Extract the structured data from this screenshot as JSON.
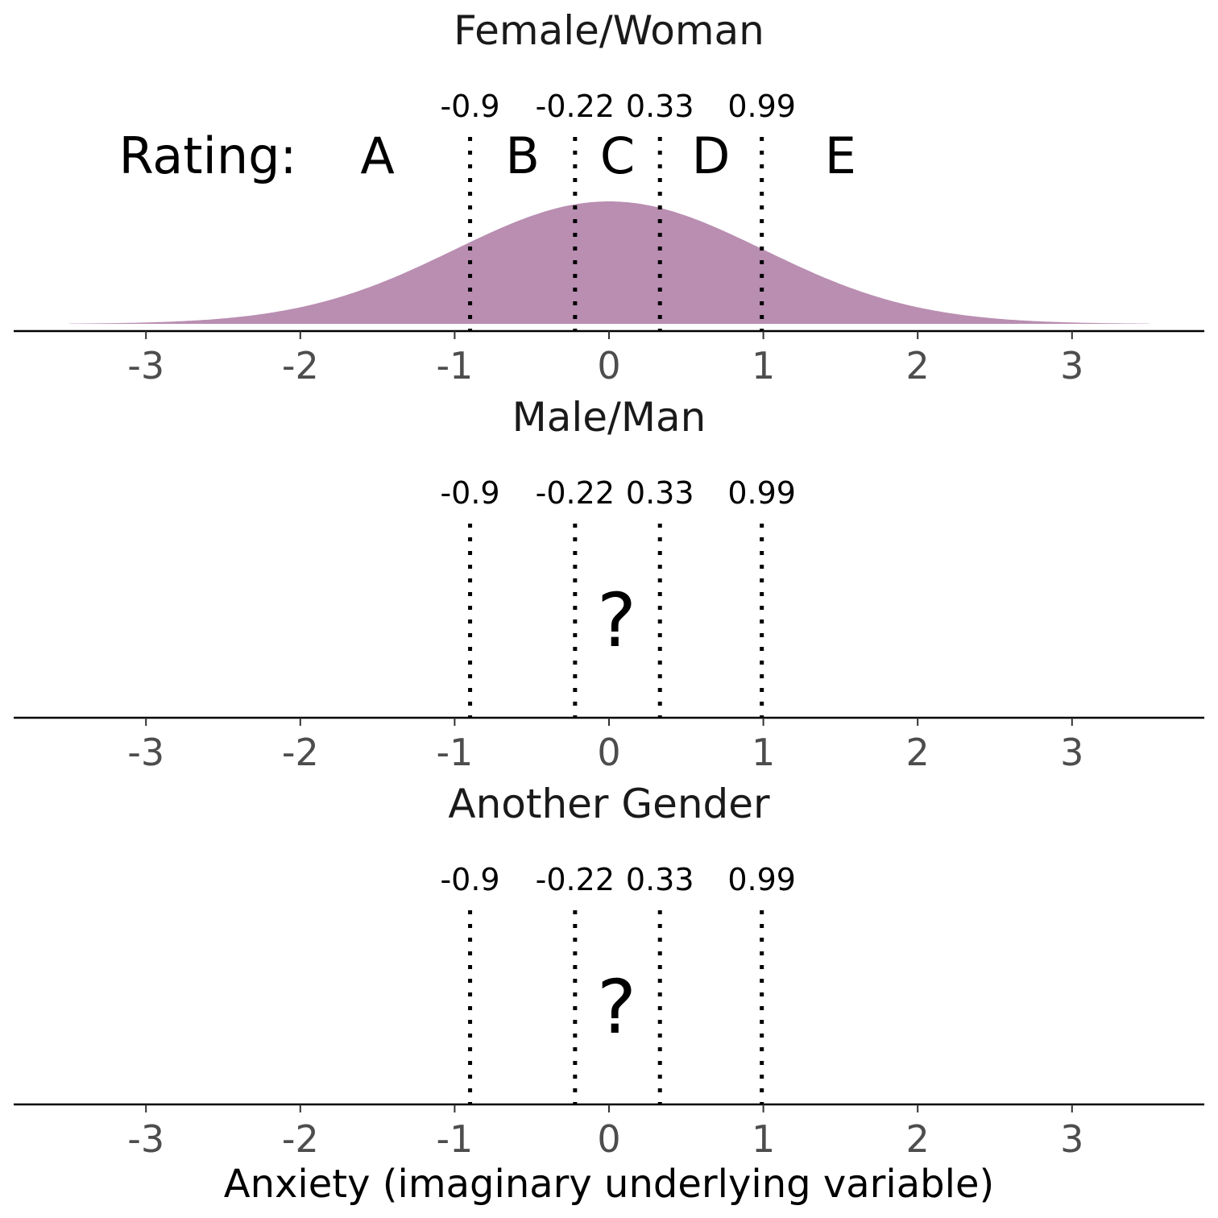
{
  "chart_data": {
    "type": "area",
    "xlabel": "Anxiety (imaginary underlying variable)",
    "x_ticks": [
      -3,
      -2,
      -1,
      0,
      1,
      2,
      3
    ],
    "xlim": [
      -3.85,
      3.85
    ],
    "thresholds": [
      -0.9,
      -0.22,
      0.33,
      0.99
    ],
    "threshold_labels": [
      "-0.9",
      "-0.22",
      "0.33",
      "0.99"
    ],
    "rating_label": "Rating:",
    "categories": [
      "A",
      "B",
      "C",
      "D",
      "E"
    ],
    "density": {
      "distribution": "normal",
      "mean": 0,
      "sd": 1,
      "range": [
        -3.5,
        3.5
      ],
      "color": "#b98eb1"
    },
    "panels": [
      {
        "title": "Female/Woman",
        "shows_density": true,
        "marker": ""
      },
      {
        "title": "Male/Man",
        "shows_density": false,
        "marker": "?"
      },
      {
        "title": "Another Gender",
        "shows_density": false,
        "marker": "?"
      }
    ]
  }
}
